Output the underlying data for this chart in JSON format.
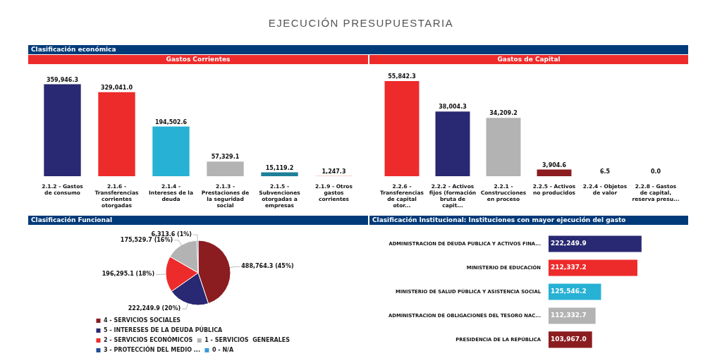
{
  "chart_data": [
    {
      "type": "bar",
      "title": "Gastos Corrientes",
      "annotations": [
        "EJECUCIÓN PRESUPUESTARIA",
        "Clasificación económica"
      ],
      "categories": [
        "2.1.2 - Gastos de consumo",
        "2.1.6 - Transferencias corrientes otorgadas",
        "2.1.4 - Intereses de la deuda",
        "2.1.3 - Prestaciones de la seguridad social",
        "2.1.5 - Subvenciones otorgadas a empresas",
        "2.1.9 - Otros gastos corrientes"
      ],
      "values": [
        359946.3,
        329041.0,
        194502.6,
        57329.1,
        15119.2,
        1247.3
      ],
      "colors": [
        "#282873",
        "#ee2b2b",
        "#27b1d4",
        "#b3b3b3",
        "#1e7f99",
        "#f0a0a0"
      ],
      "value_labels": [
        "359,946.3",
        "329,041.0",
        "194,502.6",
        "57,329.1",
        "15,119.2",
        "1,247.3"
      ],
      "tick_labels": "x"
    },
    {
      "type": "bar",
      "title": "Gastos de Capital",
      "categories": [
        "2.2.6 - Transferencias de capital otor...",
        "2.2.2 - Activos fijos (formación bruta de capit...",
        "2.2.1 - Construcciones en proceso",
        "2.2.5 - Activos no producidos",
        "2.2.4 - Objetos de valor",
        "2.2.8 - Gastos de capital, reserva presu..."
      ],
      "values": [
        55842.3,
        38004.3,
        34209.2,
        3904.6,
        6.5,
        0.0
      ],
      "colors": [
        "#ee2b2b",
        "#282873",
        "#b3b3b3",
        "#8b1c1f",
        "#bfe0f0",
        "#bfe0f0"
      ],
      "value_labels": [
        "55,842.3",
        "38,004.3",
        "34,209.2",
        "3,904.6",
        "6.5",
        "0.0"
      ],
      "tick_labels": "x"
    },
    {
      "type": "pie",
      "title": "Clasificación Funcional",
      "categories": [
        "4 - SERVICIOS SOCIALES",
        "5 - INTERESES DE LA DEUDA PÚBLICA",
        "2 - SERVICIOS ECONÓMICOS",
        "1 - SERVICIOS  GENERALES",
        "3 - PROTECCIÓN DEL MEDIO ...",
        "0 - N/A"
      ],
      "values": [
        488764.3,
        222249.9,
        196295.1,
        175529.7,
        6313.6,
        null
      ],
      "colors": [
        "#8b1c1f",
        "#282873",
        "#ee2b2b",
        "#b3b3b3",
        "#1f4e9a",
        "#3a9ad9"
      ],
      "value_labels": [
        "488,764.3 (45%)",
        "222,249.9 (20%)",
        "196,295.1 (18%)",
        "175,529.7 (16%)",
        "6,313.6 (1%)",
        null
      ],
      "legend": "bottom"
    },
    {
      "type": "bar",
      "title": "Clasificación Institucional: Instituciones con mayor ejecución del gasto",
      "orientation": "horizontal",
      "categories": [
        "ADMINISTRACION DE DEUDA PUBLICA Y ACTIVOS FINA...",
        "MINISTERIO DE EDUCACIÓN",
        "MINISTERIO DE SALUD PÚBLICA Y ASISTENCIA SOCIAL",
        "ADMINISTRACION DE OBLIGACIONES DEL TESORO NAC...",
        "PRESIDENCIA DE LA REPÚBLICA"
      ],
      "values": [
        222249.9,
        212337.2,
        125546.2,
        112332.7,
        103967.0
      ],
      "colors": [
        "#282873",
        "#ee2b2b",
        "#27b1d4",
        "#b3b3b3",
        "#8b1c1f"
      ],
      "value_labels": [
        "222,249.9",
        "212,337.2",
        "125,546.2",
        "112,332.7",
        "103,967.0"
      ],
      "tick_labels": "y"
    }
  ]
}
